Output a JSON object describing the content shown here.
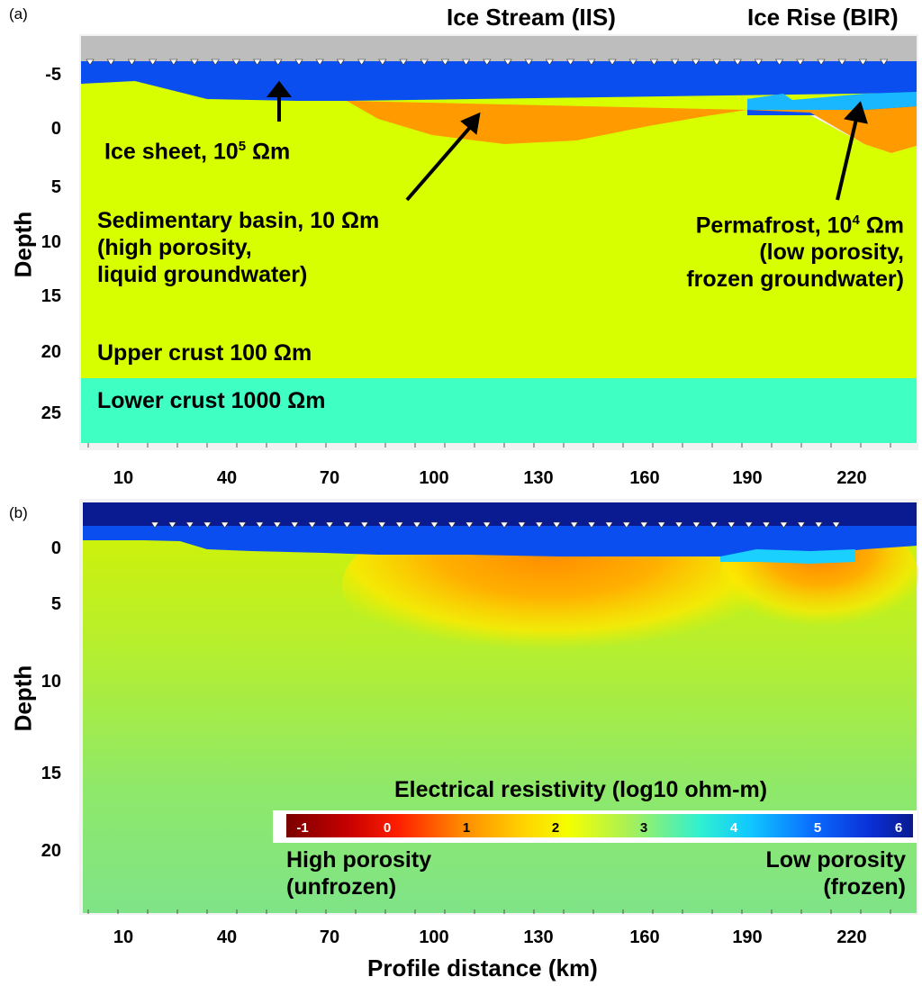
{
  "panel_a": {
    "letter": "(a)",
    "header_left": "Ice Stream (IIS)",
    "header_right": "Ice Rise (BIR)",
    "ylabel": "Depth",
    "yticks": [
      "-5",
      "0",
      "5",
      "10",
      "15",
      "20",
      "25"
    ],
    "xticks": [
      "10",
      "40",
      "70",
      "100",
      "130",
      "160",
      "190",
      "220"
    ],
    "ice_sheet": {
      "text": "Ice sheet, 10",
      "sup": "5",
      "unit": " Ωm"
    },
    "sedimentary": {
      "line1": "Sedimentary basin, 10 Ωm",
      "line2": "(high porosity,",
      "line3": "liquid groundwater)"
    },
    "permafrost": {
      "line1": "Permafrost, 10",
      "sup": "4",
      "unit": " Ωm",
      "line2": "(low porosity,",
      "line3": "frozen groundwater)"
    },
    "upper_crust": "Upper crust 100 Ωm",
    "lower_crust": "Lower crust 1000 Ωm",
    "colors": {
      "air": "#bdbdbd",
      "ice": "#0a4ef0",
      "sediment": "#ff9a00",
      "permafrost": "#19b7ff",
      "upper_crust": "#d7ff00",
      "lower_crust": "#3fffc2"
    }
  },
  "panel_b": {
    "letter": "(b)",
    "ylabel": "Depth",
    "yticks": [
      "0",
      "5",
      "10",
      "15",
      "20"
    ],
    "xticks": [
      "10",
      "40",
      "70",
      "100",
      "130",
      "160",
      "190",
      "220"
    ],
    "xlabel": "Profile distance (km)",
    "colorbar": {
      "title": "Electrical resistivity (log10 ohm-m)",
      "ticks": [
        "-1",
        "0",
        "1",
        "2",
        "3",
        "4",
        "5",
        "6"
      ],
      "left_label": {
        "line1": "High porosity",
        "line2": "(unfrozen)"
      },
      "right_label": {
        "line1": "Low porosity",
        "line2": "(frozen)"
      }
    }
  }
}
